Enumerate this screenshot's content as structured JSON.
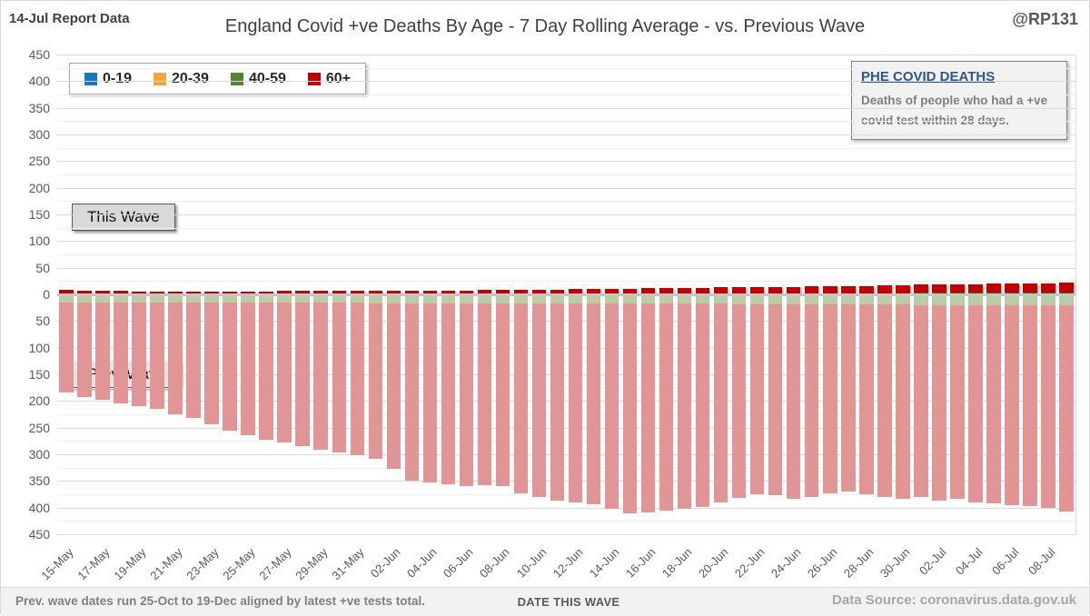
{
  "header": {
    "report_label": "14-Jul Report Data",
    "title": "England Covid +ve Deaths By Age - 7 Day Rolling Average - vs. Previous Wave",
    "handle": "@RP131"
  },
  "legend": {
    "items": [
      {
        "label": "0-19",
        "color": "#1778C2"
      },
      {
        "label": "20-39",
        "color": "#F4A43B"
      },
      {
        "label": "40-59",
        "color": "#568233"
      },
      {
        "label": "60+",
        "color": "#C00000"
      }
    ]
  },
  "info_box": {
    "title": "PHE COVID DEATHS",
    "body": "Deaths of people who had a +ve covid test within 28 days."
  },
  "annotations": {
    "this_wave": "This Wave",
    "prev_wave": "Prev. Wave"
  },
  "footer": {
    "note": "Prev. wave dates run 25-Oct to 19-Dec aligned by latest +ve tests total.",
    "axis_title": "DATE THIS WAVE",
    "source": "Data Source: coronavirus.data.gov.uk"
  },
  "chart_data": {
    "type": "bar",
    "stacked": true,
    "mirrored": true,
    "title": "England Covid +ve Deaths By Age - 7 Day Rolling Average - vs. Previous Wave",
    "xlabel": "DATE THIS WAVE",
    "ylabel": "",
    "ylim": [
      -450,
      450
    ],
    "y_major_step": 50,
    "y_minor_step": 25,
    "grid": true,
    "legend_position": "top-left",
    "x_tick_labels": [
      "15-May",
      "17-May",
      "19-May",
      "21-May",
      "23-May",
      "25-May",
      "27-May",
      "29-May",
      "31-May",
      "02-Jun",
      "04-Jun",
      "06-Jun",
      "08-Jun",
      "10-Jun",
      "12-Jun",
      "14-Jun",
      "16-Jun",
      "18-Jun",
      "20-Jun",
      "22-Jun",
      "24-Jun",
      "26-Jun",
      "28-Jun",
      "30-Jun",
      "02-Jul",
      "04-Jul",
      "06-Jul",
      "08-Jul"
    ],
    "dates": [
      "15-May",
      "16-May",
      "17-May",
      "18-May",
      "19-May",
      "20-May",
      "21-May",
      "22-May",
      "23-May",
      "24-May",
      "25-May",
      "26-May",
      "27-May",
      "28-May",
      "29-May",
      "30-May",
      "31-May",
      "01-Jun",
      "02-Jun",
      "03-Jun",
      "04-Jun",
      "05-Jun",
      "06-Jun",
      "07-Jun",
      "08-Jun",
      "09-Jun",
      "10-Jun",
      "11-Jun",
      "12-Jun",
      "13-Jun",
      "14-Jun",
      "15-Jun",
      "16-Jun",
      "17-Jun",
      "18-Jun",
      "19-Jun",
      "20-Jun",
      "21-Jun",
      "22-Jun",
      "23-Jun",
      "24-Jun",
      "25-Jun",
      "26-Jun",
      "27-Jun",
      "28-Jun",
      "29-Jun",
      "30-Jun",
      "01-Jul",
      "02-Jul",
      "03-Jul",
      "04-Jul",
      "05-Jul",
      "06-Jul",
      "07-Jul",
      "08-Jul",
      "09-Jul"
    ],
    "this_wave": {
      "direction": "up",
      "series": [
        {
          "name": "0-19",
          "color": "#1778C2",
          "values": [
            0,
            0,
            0,
            0,
            0,
            0,
            0,
            0,
            0,
            0,
            0,
            0,
            0,
            0,
            0,
            0,
            0,
            0,
            0,
            0,
            0,
            0,
            0,
            0,
            0,
            0,
            0,
            0,
            0,
            0,
            0,
            0,
            0,
            0,
            0,
            0,
            0,
            0,
            0,
            0,
            0,
            0,
            0,
            0,
            0,
            0,
            0,
            0,
            0,
            0,
            0,
            0,
            0,
            0,
            0,
            0
          ]
        },
        {
          "name": "20-39",
          "color": "#F4A43B",
          "values": [
            0.4,
            0.4,
            0.4,
            0.4,
            0.4,
            0.4,
            0.4,
            0.4,
            0.4,
            0.4,
            0.4,
            0.4,
            0.4,
            0.4,
            0.4,
            0.4,
            0.4,
            0.5,
            0.5,
            0.5,
            0.5,
            0.5,
            0.5,
            0.5,
            0.5,
            0.5,
            0.5,
            0.6,
            0.6,
            0.6,
            0.6,
            0.6,
            0.6,
            0.6,
            0.6,
            0.6,
            0.6,
            0.7,
            0.7,
            0.7,
            0.7,
            0.7,
            0.7,
            0.7,
            0.7,
            0.7,
            0.7,
            0.8,
            0.8,
            0.8,
            0.8,
            0.8,
            0.8,
            0.8,
            0.8,
            0.8
          ]
        },
        {
          "name": "40-59",
          "color": "#568233",
          "values": [
            0.6,
            0.6,
            0.6,
            0.6,
            0.6,
            0.6,
            0.6,
            0.6,
            0.6,
            0.6,
            0.6,
            0.6,
            0.6,
            0.6,
            0.6,
            0.6,
            0.6,
            1,
            1,
            1,
            1,
            1,
            1,
            1,
            1,
            1,
            1,
            1,
            1,
            1,
            1,
            1,
            1.6,
            1.6,
            1.6,
            1.6,
            1.6,
            1.6,
            1.6,
            1.6,
            1.6,
            1.6,
            1.6,
            1.6,
            1.6,
            1.6,
            1.6,
            2.2,
            2.2,
            2.2,
            2.2,
            2.2,
            2.2,
            2.2,
            2.2,
            2.2
          ]
        },
        {
          "name": "60+",
          "color": "#C00000",
          "values": [
            7,
            6,
            6,
            6,
            5,
            5,
            5,
            5,
            5,
            5,
            5,
            5,
            6,
            6,
            6,
            6,
            6,
            6,
            6,
            6,
            6,
            6,
            6,
            7,
            7,
            7,
            7,
            7,
            8,
            8,
            8,
            8,
            9,
            9,
            10,
            10,
            11,
            11,
            12,
            12,
            12,
            13,
            13,
            13,
            13,
            14,
            14,
            15,
            15,
            16,
            16,
            17,
            17,
            18,
            18,
            19
          ]
        }
      ]
    },
    "prev_wave": {
      "direction": "down",
      "series": [
        {
          "name": "40-59",
          "color": "#BCCBA4",
          "values": [
            13,
            13,
            13,
            13,
            13,
            13,
            13,
            13,
            13,
            13,
            13,
            13,
            13,
            13,
            13,
            13,
            13,
            14,
            14,
            14,
            14,
            14,
            14,
            14,
            14,
            14,
            14,
            15,
            15,
            15,
            15,
            15,
            15,
            15,
            15,
            15,
            15,
            16,
            16,
            16,
            16,
            16,
            16,
            16,
            16,
            16,
            16,
            17,
            17,
            17,
            17,
            17,
            17,
            17,
            17,
            17
          ]
        },
        {
          "name": "60+",
          "color": "#E29595",
          "values": [
            169,
            178,
            183,
            189,
            195,
            200,
            209,
            217,
            229,
            240,
            249,
            257,
            263,
            269,
            276,
            282,
            287,
            292,
            311,
            333,
            336,
            339,
            344,
            342,
            344,
            356,
            364,
            369,
            373,
            377,
            385,
            394,
            392,
            388,
            385,
            381,
            373,
            364,
            357,
            359,
            365,
            362,
            354,
            351,
            356,
            362,
            365,
            360,
            367,
            363,
            370,
            373,
            375,
            378,
            381,
            388
          ]
        }
      ]
    }
  }
}
